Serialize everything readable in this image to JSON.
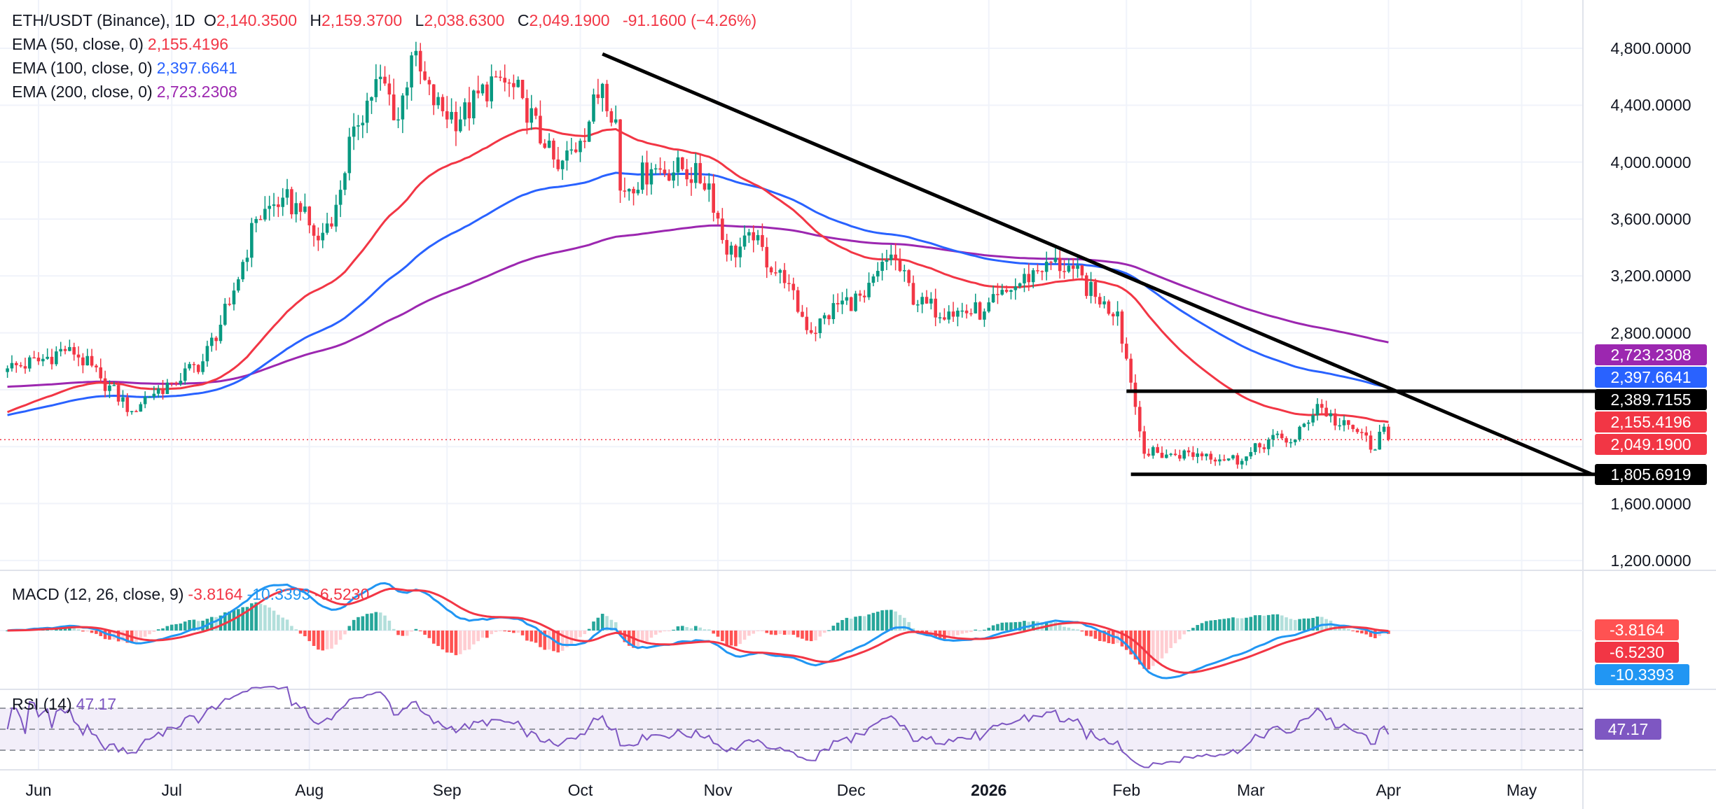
{
  "header": {
    "symbol": "ETH/USDT (Binance), 1D",
    "o_label": "O",
    "o": "2,140.3500",
    "h_label": "H",
    "h": "2,159.3700",
    "l_label": "L",
    "l": "2,038.6300",
    "c_label": "C",
    "c": "2,049.1900",
    "change": "-91.1600 (−4.26%)"
  },
  "indicators": {
    "ema50": {
      "label": "EMA (50, close, 0)",
      "value": "2,155.4196",
      "color": "#f23645"
    },
    "ema100": {
      "label": "EMA (100, close, 0)",
      "value": "2,397.6641",
      "color": "#2962ff"
    },
    "ema200": {
      "label": "EMA (200, close, 0)",
      "value": "2,723.2308",
      "color": "#9c27b0"
    },
    "macd": {
      "label": "MACD (12, 26, close, 9)",
      "hist": "-3.8164",
      "macd": "-10.3393",
      "signal": "-6.5230"
    },
    "rsi": {
      "label": "RSI (14)",
      "value": "47.17"
    }
  },
  "price_axis": {
    "ticks": [
      "4,800.0000",
      "4,400.0000",
      "4,000.0000",
      "3,600.0000",
      "3,200.0000",
      "2,800.0000",
      "1,600.0000",
      "1,200.0000"
    ],
    "badges": {
      "ema200": "2,723.2308",
      "ema100": "2,397.6641",
      "resistance": "2,389.7155",
      "ema50": "2,155.4196",
      "last": "2,049.1900",
      "support": "1,805.6919"
    }
  },
  "time_axis": [
    "Jun",
    "Jul",
    "Aug",
    "Sep",
    "Oct",
    "Nov",
    "Dec",
    "2026",
    "Feb",
    "Mar",
    "Apr",
    "May"
  ],
  "chart_data": {
    "type": "candlestick",
    "title": "ETH/USDT (Binance), 1D",
    "start_date": "2025-05-25",
    "close_keypoints": [
      [
        0,
        2550
      ],
      [
        7,
        2600
      ],
      [
        14,
        2700
      ],
      [
        21,
        2480
      ],
      [
        28,
        2250
      ],
      [
        31,
        2350
      ],
      [
        37,
        2450
      ],
      [
        44,
        2600
      ],
      [
        50,
        3000
      ],
      [
        56,
        3600
      ],
      [
        62,
        3750
      ],
      [
        66,
        3650
      ],
      [
        70,
        3450
      ],
      [
        74,
        3700
      ],
      [
        78,
        4250
      ],
      [
        84,
        4600
      ],
      [
        88,
        4300
      ],
      [
        91,
        4750
      ],
      [
        96,
        4400
      ],
      [
        102,
        4300
      ],
      [
        110,
        4600
      ],
      [
        116,
        4450
      ],
      [
        121,
        4100
      ],
      [
        124,
        3950
      ],
      [
        129,
        4150
      ],
      [
        134,
        4550
      ],
      [
        137,
        4300
      ],
      [
        138,
        3800
      ],
      [
        145,
        3950
      ],
      [
        152,
        3950
      ],
      [
        158,
        3850
      ],
      [
        162,
        3350
      ],
      [
        168,
        3450
      ],
      [
        175,
        3150
      ],
      [
        181,
        2800
      ],
      [
        187,
        3000
      ],
      [
        193,
        3050
      ],
      [
        199,
        3350
      ],
      [
        205,
        3000
      ],
      [
        212,
        2950
      ],
      [
        220,
        2950
      ],
      [
        226,
        3100
      ],
      [
        234,
        3300
      ],
      [
        240,
        3250
      ],
      [
        246,
        3000
      ],
      [
        250,
        2950
      ],
      [
        253,
        2450
      ],
      [
        256,
        1950
      ],
      [
        262,
        1950
      ],
      [
        270,
        1950
      ],
      [
        278,
        1900
      ],
      [
        284,
        2050
      ],
      [
        290,
        2050
      ],
      [
        295,
        2300
      ],
      [
        300,
        2150
      ],
      [
        305,
        2100
      ],
      [
        308,
        1980
      ],
      [
        310,
        2140.35
      ],
      [
        311,
        2049.19
      ]
    ],
    "last_candle": {
      "open": 2140.35,
      "high": 2159.37,
      "low": 2038.63,
      "close": 2049.19
    },
    "ema_seeds": {
      "ema50": 2230,
      "ema100": 2215,
      "ema200": 2420
    },
    "ylim": [
      1100,
      4950
    ],
    "levels": {
      "resistance": 2389.7155,
      "support": 1805.6919
    },
    "trendline": {
      "from": {
        "day": 134,
        "price": 4760
      },
      "to": {
        "day": 322,
        "price": 1805.69
      }
    },
    "rsi_bands": [
      70,
      50,
      30
    ],
    "colors": {
      "up": "#089981",
      "down": "#f23645",
      "macd": "#2196f3",
      "signal": "#f23645",
      "rsi": "#7e57c2"
    }
  }
}
